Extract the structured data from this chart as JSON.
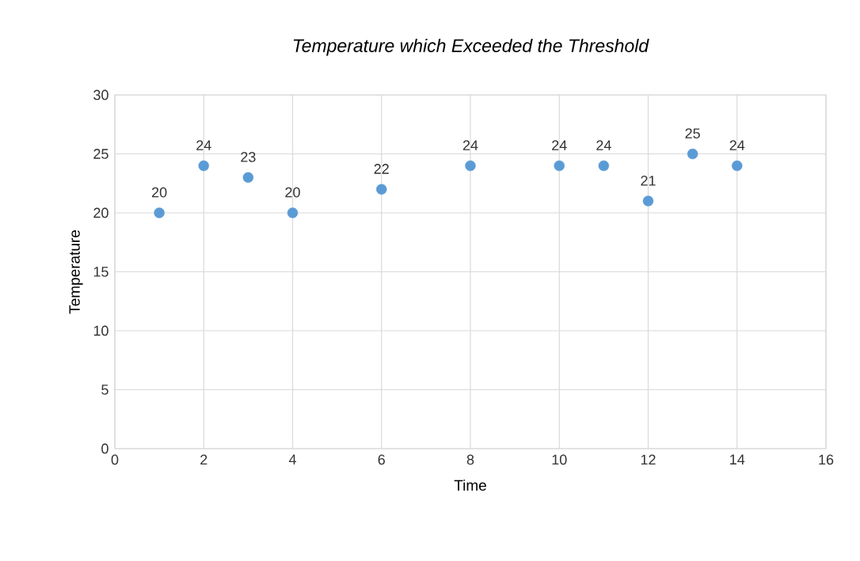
{
  "chart_data": {
    "type": "scatter",
    "title": "Temperature which Exceeded the Threshold",
    "xlabel": "Time",
    "ylabel": "Temperature",
    "x": [
      1,
      2,
      3,
      4,
      6,
      8,
      10,
      11,
      12,
      13,
      14
    ],
    "values": [
      20,
      24,
      23,
      20,
      22,
      24,
      24,
      24,
      21,
      25,
      24
    ],
    "color": "#5b9bd5",
    "marker": "circle",
    "data_labels": true,
    "grid": true,
    "xlim": [
      0,
      16
    ],
    "xticks": [
      0,
      2,
      4,
      6,
      8,
      10,
      12,
      14,
      16
    ],
    "ylim": [
      0,
      30
    ],
    "yticks": [
      0,
      5,
      10,
      15,
      20,
      25,
      30
    ]
  }
}
